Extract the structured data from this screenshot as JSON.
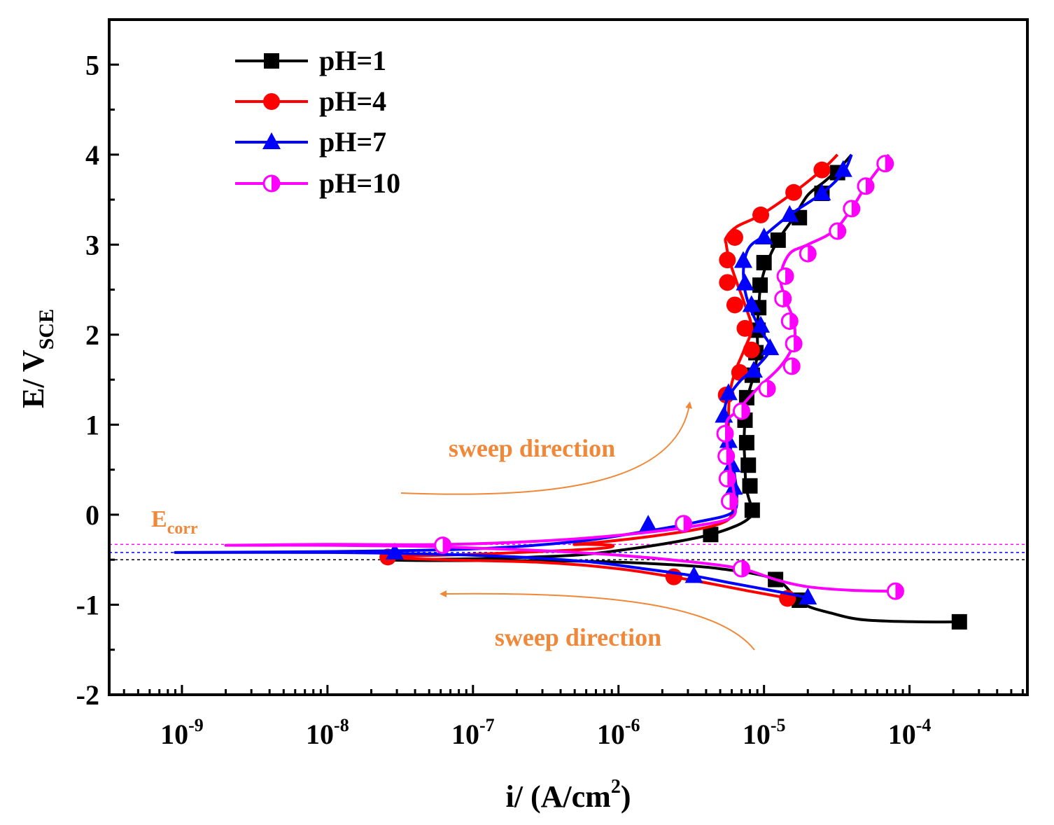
{
  "chart_data": {
    "type": "line",
    "title": "",
    "xlabel": "i/ (A/cm",
    "xlabel_sup": "2",
    "xlabel_close": ")",
    "ylabel": "E/ V",
    "ylabel_sub": "SCE",
    "x_scale": "log",
    "xlim_log10": [
      -9.5,
      -3.19
    ],
    "ylim": [
      -2,
      5.5
    ],
    "y_ticks": [
      "-2",
      "-1",
      "0",
      "1",
      "2",
      "3",
      "4",
      "5"
    ],
    "x_tick_base": "10",
    "x_tick_exponents": [
      "-9",
      "-8",
      "-7",
      "-6",
      "-5",
      "-4"
    ],
    "legend_position": "top-left",
    "annotations": {
      "sweep_up": "sweep direction",
      "sweep_down": "sweep direction",
      "ecorr_main": "E",
      "ecorr_sub": "corr",
      "color": "#f0883a"
    },
    "ecorr_lines": [
      {
        "name": "pH=1",
        "E": -0.5,
        "color": "#000000"
      },
      {
        "name": "pH=7",
        "E": -0.42,
        "color": "#0000ff"
      },
      {
        "name": "pH=10",
        "E": -0.33,
        "color": "#ff00ff"
      }
    ],
    "series": [
      {
        "name": "pH=1",
        "color": "#000000",
        "marker": "square",
        "x": [
          0.00022,
          0.00012,
          5e-05,
          3e-05,
          1.8e-05,
          1.2e-05,
          5e-06,
          2e-06,
          7e-07,
          2e-07,
          5e-08,
          2.5e-08,
          1e-07,
          5e-07,
          1.2e-06,
          2.5e-06,
          4.3e-06,
          6.5e-06,
          8e-06,
          8.3e-06,
          7.8e-06,
          7.5e-06,
          7.4e-06,
          7.3e-06,
          7.4e-06,
          7.7e-06,
          8.5e-06,
          9e-06,
          9e-06,
          9.2e-06,
          9.5e-06,
          1.05e-05,
          1.25e-05,
          1.6e-05,
          2e-05,
          2.6e-05,
          3.3e-05,
          4e-05
        ],
        "E": [
          -1.19,
          -1.19,
          -1.17,
          -1.1,
          -0.98,
          -0.72,
          -0.6,
          -0.55,
          -0.52,
          -0.51,
          -0.51,
          -0.5,
          -0.49,
          -0.45,
          -0.38,
          -0.3,
          -0.22,
          -0.12,
          -0.03,
          0.05,
          0.2,
          0.32,
          0.55,
          0.8,
          1.05,
          1.3,
          1.55,
          1.8,
          2.05,
          2.3,
          2.55,
          2.8,
          3.05,
          3.3,
          3.55,
          3.7,
          3.85,
          4.0
        ],
        "markers": [
          [
            0.00022,
            -1.19
          ],
          [
            1.2e-05,
            -0.72
          ],
          [
            1.75e-05,
            -0.95
          ],
          [
            4.3e-06,
            -0.22
          ],
          [
            8.3e-06,
            0.05
          ],
          [
            8e-06,
            0.32
          ],
          [
            7.8e-06,
            0.55
          ],
          [
            7.6e-06,
            0.8
          ],
          [
            7.4e-06,
            1.05
          ],
          [
            7.6e-06,
            1.3
          ],
          [
            8.3e-06,
            1.55
          ],
          [
            8.8e-06,
            1.8
          ],
          [
            9.1e-06,
            2.05
          ],
          [
            9.2e-06,
            2.3
          ],
          [
            9.4e-06,
            2.55
          ],
          [
            1e-05,
            2.8
          ],
          [
            1.25e-05,
            3.05
          ],
          [
            1.75e-05,
            3.3
          ],
          [
            2.5e-05,
            3.57
          ],
          [
            3.2e-05,
            3.8
          ]
        ]
      },
      {
        "name": "pH=4",
        "color": "#ff0000",
        "marker": "circle",
        "x": [
          1.5e-05,
          8e-06,
          3e-06,
          1e-06,
          3e-07,
          6e-08,
          2.5e-08,
          1e-07,
          4e-07,
          8e-07,
          9e-07,
          6e-07,
          5e-07,
          8e-07,
          1.5e-06,
          3e-06,
          5e-06,
          6e-06,
          6e-06,
          5.8e-06,
          5.7e-06,
          5.7e-06,
          5.8e-06,
          6.3e-06,
          7.3e-06,
          8.2e-06,
          7.4e-06,
          6.5e-06,
          5.8e-06,
          5.5e-06,
          5.5e-06,
          6.5e-06,
          9.5e-06,
          1.6e-05,
          2.5e-05,
          3.2e-05
        ],
        "E": [
          -0.93,
          -0.85,
          -0.72,
          -0.6,
          -0.53,
          -0.5,
          -0.47,
          -0.44,
          -0.4,
          -0.37,
          -0.34,
          -0.33,
          -0.33,
          -0.3,
          -0.25,
          -0.18,
          -0.1,
          0.0,
          0.2,
          0.5,
          0.8,
          1.05,
          1.33,
          1.58,
          1.83,
          2.07,
          2.33,
          2.58,
          2.82,
          3.0,
          3.08,
          3.2,
          3.33,
          3.58,
          3.83,
          4.0
        ],
        "markers": [
          [
            1.45e-05,
            -0.93
          ],
          [
            2.4e-06,
            -0.69
          ],
          [
            2.6e-08,
            -0.47
          ],
          [
            5.5e-06,
            1.33
          ],
          [
            6.8e-06,
            1.58
          ],
          [
            8.2e-06,
            1.83
          ],
          [
            7.4e-06,
            2.07
          ],
          [
            6.3e-06,
            2.33
          ],
          [
            5.6e-06,
            2.58
          ],
          [
            5.6e-06,
            2.83
          ],
          [
            6.3e-06,
            3.08
          ],
          [
            9.5e-06,
            3.33
          ],
          [
            1.6e-05,
            3.58
          ],
          [
            2.5e-05,
            3.83
          ]
        ]
      },
      {
        "name": "pH=7",
        "color": "#0000ff",
        "marker": "triangle",
        "x": [
          2e-05,
          1.2e-05,
          6e-06,
          3.3e-06,
          1.5e-06,
          6e-07,
          2e-07,
          6e-08,
          1e-08,
          9e-10,
          1e-08,
          1e-07,
          5e-07,
          1.6e-06,
          3.5e-06,
          6e-06,
          6.5e-06,
          6.2e-06,
          5.8e-06,
          5.5e-06,
          5.4e-06,
          5.8e-06,
          7e-06,
          9e-06,
          1.1e-05,
          9.5e-06,
          8e-06,
          7.3e-06,
          7.3e-06,
          8e-06,
          1e-05,
          1.5e-05,
          2.5e-05,
          3.5e-05,
          4e-05
        ],
        "E": [
          -0.92,
          -0.85,
          -0.76,
          -0.68,
          -0.6,
          -0.52,
          -0.47,
          -0.44,
          -0.42,
          -0.42,
          -0.41,
          -0.38,
          -0.3,
          -0.18,
          -0.08,
          0.02,
          0.2,
          0.5,
          0.8,
          1.05,
          1.2,
          1.33,
          1.5,
          1.65,
          1.85,
          2.05,
          2.3,
          2.55,
          2.8,
          2.98,
          3.1,
          3.33,
          3.57,
          3.8,
          4.0
        ],
        "markers": [
          [
            2e-05,
            -0.92
          ],
          [
            3.3e-06,
            -0.68
          ],
          [
            2.9e-08,
            -0.42
          ],
          [
            1.6e-06,
            -0.11
          ],
          [
            6.2e-06,
            0.3
          ],
          [
            6e-06,
            0.55
          ],
          [
            5.7e-06,
            0.82
          ],
          [
            5.3e-06,
            1.1
          ],
          [
            5.7e-06,
            1.35
          ],
          [
            8.5e-06,
            1.6
          ],
          [
            1.1e-05,
            1.85
          ],
          [
            9.5e-06,
            2.1
          ],
          [
            8.2e-06,
            2.33
          ],
          [
            7.4e-06,
            2.57
          ],
          [
            7.2e-06,
            2.82
          ],
          [
            1e-05,
            3.08
          ],
          [
            1.5e-05,
            3.33
          ],
          [
            2.5e-05,
            3.57
          ],
          [
            3.5e-05,
            3.83
          ]
        ]
      },
      {
        "name": "pH=10",
        "color": "#ff00ff",
        "marker": "half-circle",
        "x": [
          8e-05,
          4e-05,
          2e-05,
          1.2e-05,
          7e-06,
          3e-06,
          1e-06,
          3e-07,
          1e-07,
          4e-08,
          1e-08,
          2e-09,
          1e-08,
          7e-08,
          4e-07,
          1.5e-06,
          3.5e-06,
          6e-06,
          6.3e-06,
          6e-06,
          5.7e-06,
          5.5e-06,
          5.6e-06,
          6.5e-06,
          9e-06,
          1.3e-05,
          1.6e-05,
          1.6e-05,
          1.4e-05,
          1.3e-05,
          1.5e-05,
          2e-05,
          3e-05,
          4e-05,
          5e-05,
          6.5e-05,
          7.2e-05
        ],
        "E": [
          -0.85,
          -0.84,
          -0.8,
          -0.72,
          -0.6,
          -0.52,
          -0.45,
          -0.4,
          -0.37,
          -0.35,
          -0.34,
          -0.34,
          -0.33,
          -0.33,
          -0.28,
          -0.2,
          -0.12,
          -0.03,
          0.15,
          0.4,
          0.65,
          0.9,
          1.05,
          1.15,
          1.4,
          1.65,
          1.9,
          2.15,
          2.4,
          2.65,
          2.9,
          3.0,
          3.15,
          3.4,
          3.65,
          3.9,
          4.0
        ],
        "markers": [
          [
            8e-05,
            -0.85
          ],
          [
            7e-06,
            -0.6
          ],
          [
            6.2e-08,
            -0.34
          ],
          [
            2.8e-06,
            -0.1
          ],
          [
            5.8e-06,
            0.15
          ],
          [
            5.6e-06,
            0.4
          ],
          [
            5.5e-06,
            0.65
          ],
          [
            5.4e-06,
            0.9
          ],
          [
            7e-06,
            1.15
          ],
          [
            1.05e-05,
            1.4
          ],
          [
            1.55e-05,
            1.65
          ],
          [
            1.6e-05,
            1.9
          ],
          [
            1.5e-05,
            2.15
          ],
          [
            1.35e-05,
            2.4
          ],
          [
            1.4e-05,
            2.65
          ],
          [
            2e-05,
            2.9
          ],
          [
            3.2e-05,
            3.15
          ],
          [
            4e-05,
            3.4
          ],
          [
            5e-05,
            3.65
          ],
          [
            6.8e-05,
            3.9
          ]
        ]
      }
    ]
  }
}
